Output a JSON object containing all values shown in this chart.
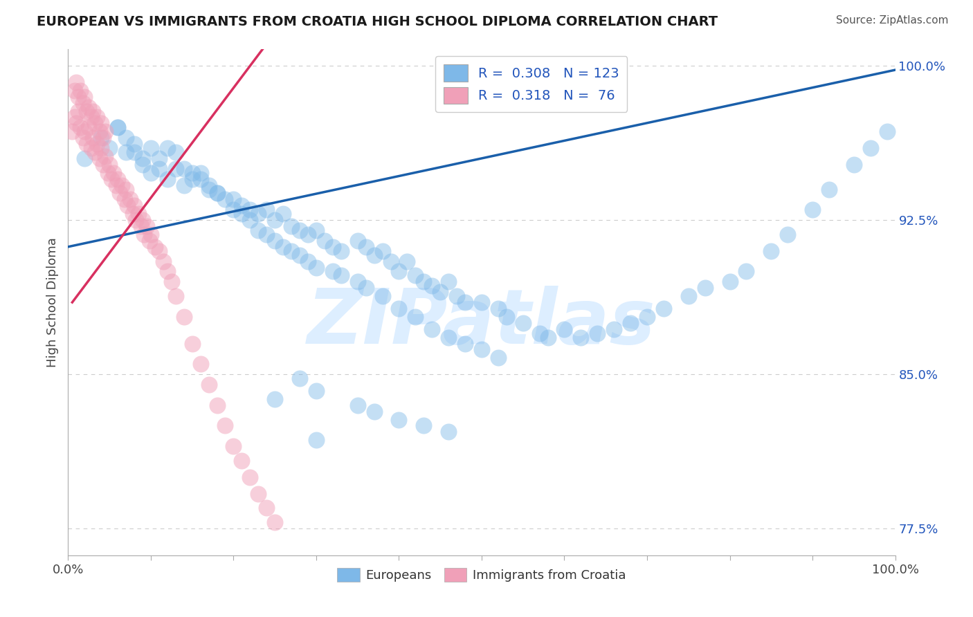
{
  "title": "EUROPEAN VS IMMIGRANTS FROM CROATIA HIGH SCHOOL DIPLOMA CORRELATION CHART",
  "source": "Source: ZipAtlas.com",
  "ylabel": "High School Diploma",
  "watermark": "ZIPatlas",
  "legend_entries": [
    {
      "label": "Europeans",
      "color": "#a8c8f0",
      "R": "0.308",
      "N": "123"
    },
    {
      "label": "Immigrants from Croatia",
      "color": "#f0a8c0",
      "R": "0.318",
      "N": "76"
    }
  ],
  "blue_scatter_x": [
    0.02,
    0.04,
    0.05,
    0.06,
    0.07,
    0.08,
    0.09,
    0.1,
    0.11,
    0.12,
    0.13,
    0.14,
    0.15,
    0.16,
    0.17,
    0.18,
    0.2,
    0.21,
    0.22,
    0.23,
    0.24,
    0.25,
    0.26,
    0.27,
    0.28,
    0.29,
    0.3,
    0.31,
    0.32,
    0.33,
    0.35,
    0.36,
    0.37,
    0.38,
    0.39,
    0.4,
    0.41,
    0.42,
    0.43,
    0.44,
    0.45,
    0.46,
    0.47,
    0.48,
    0.5,
    0.52,
    0.53,
    0.55,
    0.57,
    0.58,
    0.6,
    0.62,
    0.64,
    0.66,
    0.68,
    0.7,
    0.72,
    0.75,
    0.77,
    0.8,
    0.82,
    0.85,
    0.87,
    0.9,
    0.92,
    0.95,
    0.97,
    0.99,
    0.06,
    0.07,
    0.08,
    0.09,
    0.1,
    0.11,
    0.12,
    0.13,
    0.14,
    0.15,
    0.16,
    0.17,
    0.18,
    0.19,
    0.2,
    0.21,
    0.22,
    0.23,
    0.24,
    0.25,
    0.26,
    0.27,
    0.28,
    0.29,
    0.3,
    0.32,
    0.33,
    0.35,
    0.36,
    0.38,
    0.4,
    0.42,
    0.44,
    0.46,
    0.48,
    0.5,
    0.52,
    0.28,
    0.3,
    0.25,
    0.35,
    0.37,
    0.4,
    0.43,
    0.46,
    0.3
  ],
  "blue_scatter_y": [
    0.955,
    0.965,
    0.96,
    0.97,
    0.958,
    0.962,
    0.955,
    0.96,
    0.95,
    0.945,
    0.95,
    0.942,
    0.948,
    0.945,
    0.94,
    0.938,
    0.935,
    0.932,
    0.93,
    0.928,
    0.93,
    0.925,
    0.928,
    0.922,
    0.92,
    0.918,
    0.92,
    0.915,
    0.912,
    0.91,
    0.915,
    0.912,
    0.908,
    0.91,
    0.905,
    0.9,
    0.905,
    0.898,
    0.895,
    0.893,
    0.89,
    0.895,
    0.888,
    0.885,
    0.885,
    0.882,
    0.878,
    0.875,
    0.87,
    0.868,
    0.872,
    0.868,
    0.87,
    0.872,
    0.875,
    0.878,
    0.882,
    0.888,
    0.892,
    0.895,
    0.9,
    0.91,
    0.918,
    0.93,
    0.94,
    0.952,
    0.96,
    0.968,
    0.97,
    0.965,
    0.958,
    0.952,
    0.948,
    0.955,
    0.96,
    0.958,
    0.95,
    0.945,
    0.948,
    0.942,
    0.938,
    0.935,
    0.93,
    0.928,
    0.925,
    0.92,
    0.918,
    0.915,
    0.912,
    0.91,
    0.908,
    0.905,
    0.902,
    0.9,
    0.898,
    0.895,
    0.892,
    0.888,
    0.882,
    0.878,
    0.872,
    0.868,
    0.865,
    0.862,
    0.858,
    0.848,
    0.842,
    0.838,
    0.835,
    0.832,
    0.828,
    0.825,
    0.822,
    0.818
  ],
  "pink_scatter_x": [
    0.005,
    0.008,
    0.01,
    0.012,
    0.015,
    0.018,
    0.02,
    0.022,
    0.025,
    0.028,
    0.03,
    0.032,
    0.035,
    0.038,
    0.04,
    0.042,
    0.045,
    0.048,
    0.05,
    0.052,
    0.055,
    0.058,
    0.06,
    0.062,
    0.065,
    0.068,
    0.07,
    0.072,
    0.075,
    0.078,
    0.08,
    0.082,
    0.085,
    0.088,
    0.09,
    0.092,
    0.095,
    0.098,
    0.1,
    0.105,
    0.11,
    0.115,
    0.12,
    0.125,
    0.13,
    0.14,
    0.15,
    0.16,
    0.17,
    0.18,
    0.19,
    0.2,
    0.21,
    0.22,
    0.23,
    0.24,
    0.25,
    0.008,
    0.01,
    0.012,
    0.015,
    0.018,
    0.02,
    0.022,
    0.025,
    0.028,
    0.03,
    0.032,
    0.035,
    0.038,
    0.04,
    0.042,
    0.045
  ],
  "pink_scatter_y": [
    0.968,
    0.975,
    0.972,
    0.978,
    0.97,
    0.965,
    0.968,
    0.962,
    0.97,
    0.96,
    0.965,
    0.958,
    0.962,
    0.955,
    0.96,
    0.952,
    0.956,
    0.948,
    0.952,
    0.945,
    0.948,
    0.942,
    0.945,
    0.938,
    0.942,
    0.935,
    0.94,
    0.932,
    0.935,
    0.928,
    0.932,
    0.925,
    0.928,
    0.922,
    0.925,
    0.918,
    0.922,
    0.915,
    0.918,
    0.912,
    0.91,
    0.905,
    0.9,
    0.895,
    0.888,
    0.878,
    0.865,
    0.855,
    0.845,
    0.835,
    0.825,
    0.815,
    0.808,
    0.8,
    0.792,
    0.785,
    0.778,
    0.988,
    0.992,
    0.985,
    0.988,
    0.982,
    0.985,
    0.978,
    0.98,
    0.975,
    0.978,
    0.972,
    0.975,
    0.968,
    0.972,
    0.965,
    0.968
  ],
  "blue_line_x": [
    0.0,
    1.0
  ],
  "blue_line_y": [
    0.912,
    0.998
  ],
  "pink_line_x": [
    0.005,
    0.235
  ],
  "pink_line_y": [
    0.885,
    1.008
  ],
  "blue_color": "#7eb8e8",
  "pink_color": "#f0a0b8",
  "blue_line_color": "#1a5faa",
  "pink_line_color": "#d83060",
  "grid_color": "#cccccc",
  "background_color": "#ffffff",
  "title_color": "#1a1a1a",
  "watermark_color": "#ddeeff",
  "xlim": [
    0.0,
    1.0
  ],
  "ylim": [
    0.762,
    1.008
  ],
  "ytick_vals": [
    0.775,
    0.85,
    0.925,
    1.0
  ],
  "ytick_labs": [
    "77.5%",
    "85.0%",
    "92.5%",
    "100.0%"
  ],
  "grid_yticks": [
    0.775,
    0.85,
    0.925,
    1.0
  ],
  "xtick_positions": [
    0.0,
    0.1,
    0.2,
    0.3,
    0.4,
    0.5,
    0.6,
    0.7,
    0.8,
    0.9,
    1.0
  ]
}
